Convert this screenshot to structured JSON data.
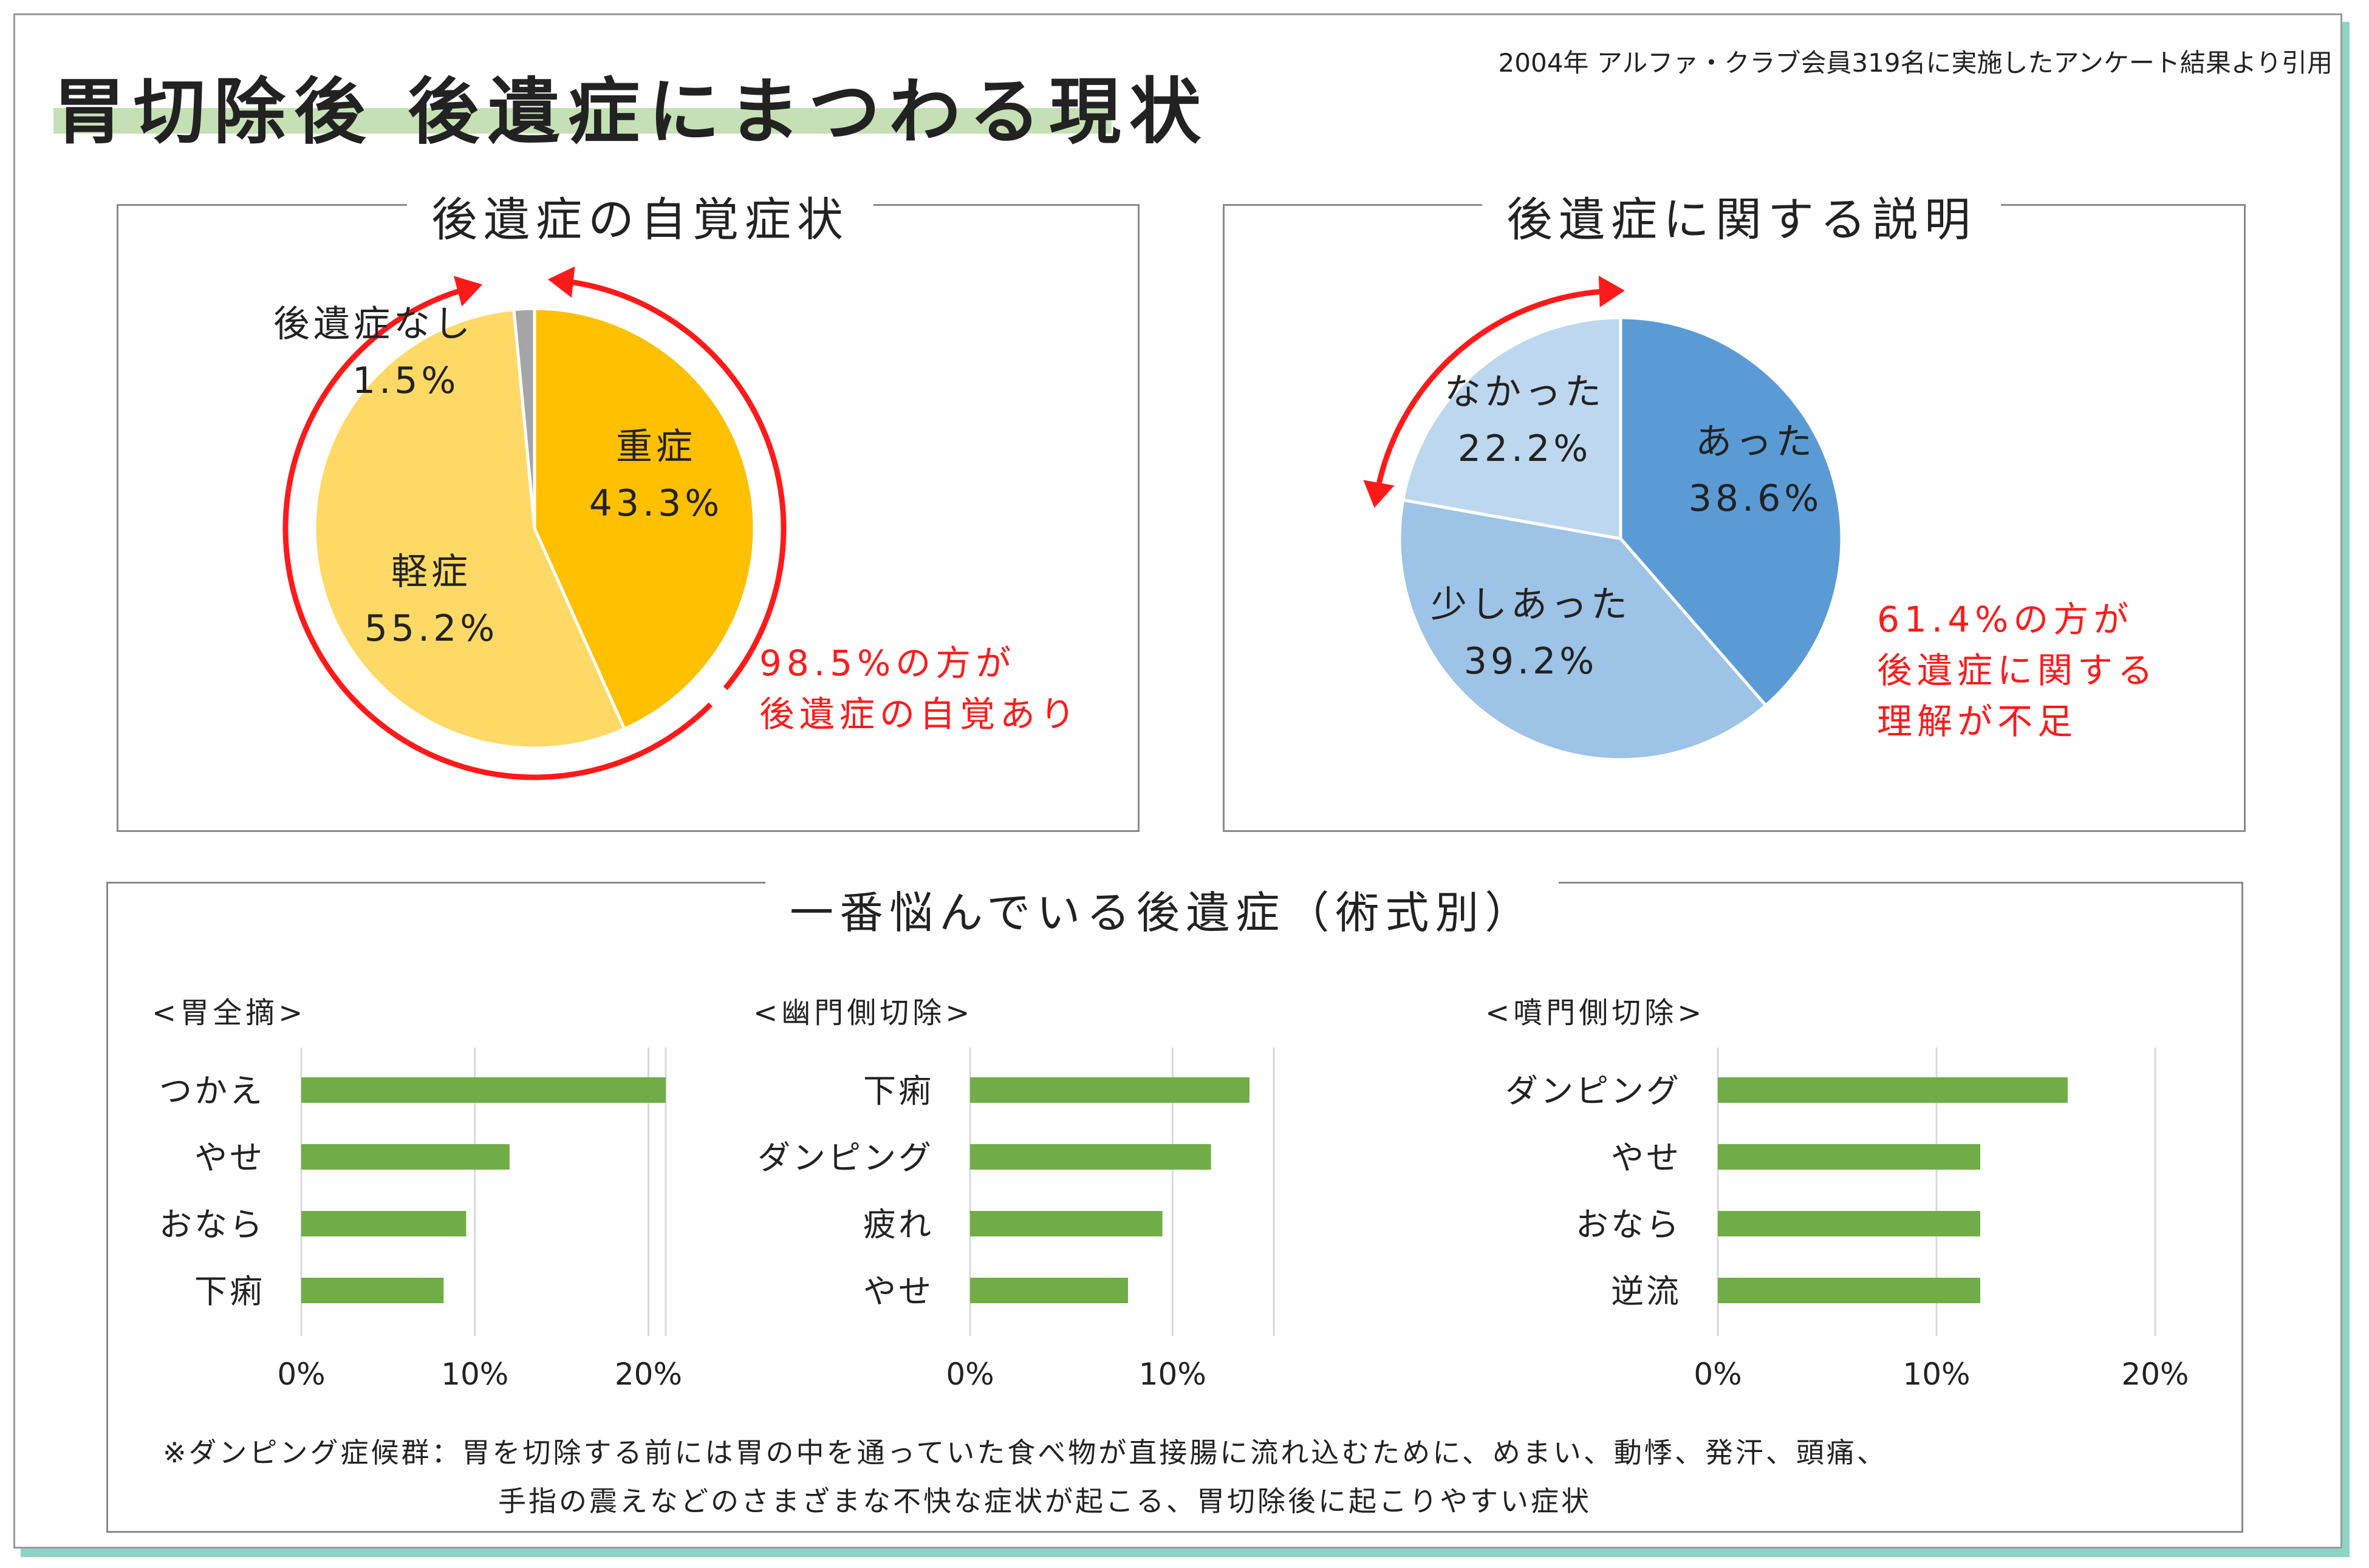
{
  "header": {
    "title": "胃切除後 後遺症にまつわる現状",
    "source": "2004年 アルファ・クラブ会員319名に実施したアンケート結果より引用"
  },
  "colors": {
    "accent_red": "#ff1a1a",
    "bar_green": "#70ad47",
    "title_underline": "#c5e0b4",
    "frame_shadow": "#8fd3c2"
  },
  "chart_data": [
    {
      "type": "pie",
      "title": "後遺症の自覚症状",
      "slices": [
        {
          "label": "重症",
          "value": 43.3,
          "value_text": "43.3%",
          "color": "#ffc000"
        },
        {
          "label": "軽症",
          "value": 55.2,
          "value_text": "55.2%",
          "color": "#ffd966"
        },
        {
          "label": "後遺症なし",
          "value": 1.5,
          "value_text": "1.5%",
          "color": "#a5a5a5"
        }
      ],
      "annotation": [
        "98.5%の方が",
        "後遺症の自覚あり"
      ]
    },
    {
      "type": "pie",
      "title": "後遺症に関する説明",
      "slices": [
        {
          "label": "あった",
          "value": 38.6,
          "value_text": "38.6%",
          "color": "#5b9bd5"
        },
        {
          "label": "少しあった",
          "value": 39.2,
          "value_text": "39.2%",
          "color": "#9dc3e6"
        },
        {
          "label": "なかった",
          "value": 22.2,
          "value_text": "22.2%",
          "color": "#bdd7ee"
        }
      ],
      "annotation": [
        "61.4%の方が",
        "後遺症に関する",
        "理解が不足"
      ]
    },
    {
      "type": "bar",
      "orientation": "horizontal",
      "title": "一番悩んでいる後遺症（術式別）",
      "subtitle": "<胃全摘>",
      "categories": [
        "つかえ",
        "やせ",
        "おなら",
        "下痢"
      ],
      "values": [
        21,
        12,
        9.5,
        8.2
      ],
      "xlim": [
        0,
        21
      ],
      "ticks": [
        0,
        10,
        20
      ],
      "tick_labels": [
        "0%",
        "10%",
        "20%"
      ]
    },
    {
      "type": "bar",
      "orientation": "horizontal",
      "subtitle": "<幽門側切除>",
      "categories": [
        "下痢",
        "ダンピング",
        "疲れ",
        "やせ"
      ],
      "values": [
        13.8,
        11.9,
        9.5,
        7.8
      ],
      "xlim": [
        0,
        15
      ],
      "ticks": [
        0,
        10
      ],
      "tick_labels": [
        "0%",
        "10%"
      ]
    },
    {
      "type": "bar",
      "orientation": "horizontal",
      "subtitle": "<噴門側切除>",
      "categories": [
        "ダンピング",
        "やせ",
        "おなら",
        "逆流"
      ],
      "values": [
        16,
        12,
        12,
        12
      ],
      "xlim": [
        0,
        20
      ],
      "ticks": [
        0,
        10,
        20
      ],
      "tick_labels": [
        "0%",
        "10%",
        "20%"
      ]
    }
  ],
  "bottom": {
    "title": "一番悩んでいる後遺症（術式別）",
    "note_line1": "※ダンピング症候群：胃を切除する前には胃の中を通っていた食べ物が直接腸に流れ込むために、めまい、動悸、発汗、頭痛、",
    "note_line2": "手指の震えなどのさまざまな不快な症状が起こる、胃切除後に起こりやすい症状"
  }
}
